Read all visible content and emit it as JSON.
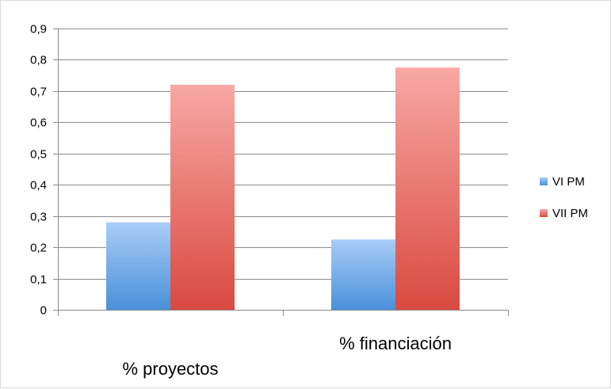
{
  "chart_data": {
    "type": "bar",
    "categories": [
      "% proyectos",
      "% financiación"
    ],
    "series": [
      {
        "name": "VI PM",
        "values": [
          0.28,
          0.225
        ],
        "color": "#5b9bd5"
      },
      {
        "name": "VII PM",
        "values": [
          0.72,
          0.775
        ],
        "color": "#e05a4e"
      }
    ],
    "ylim": [
      0,
      0.9
    ],
    "yticks": [
      "0",
      "0,1",
      "0,2",
      "0,3",
      "0,4",
      "0,5",
      "0,6",
      "0,7",
      "0,8",
      "0,9"
    ],
    "grid": true,
    "legend_position": "right",
    "title": "",
    "xlabel": "",
    "ylabel": ""
  }
}
